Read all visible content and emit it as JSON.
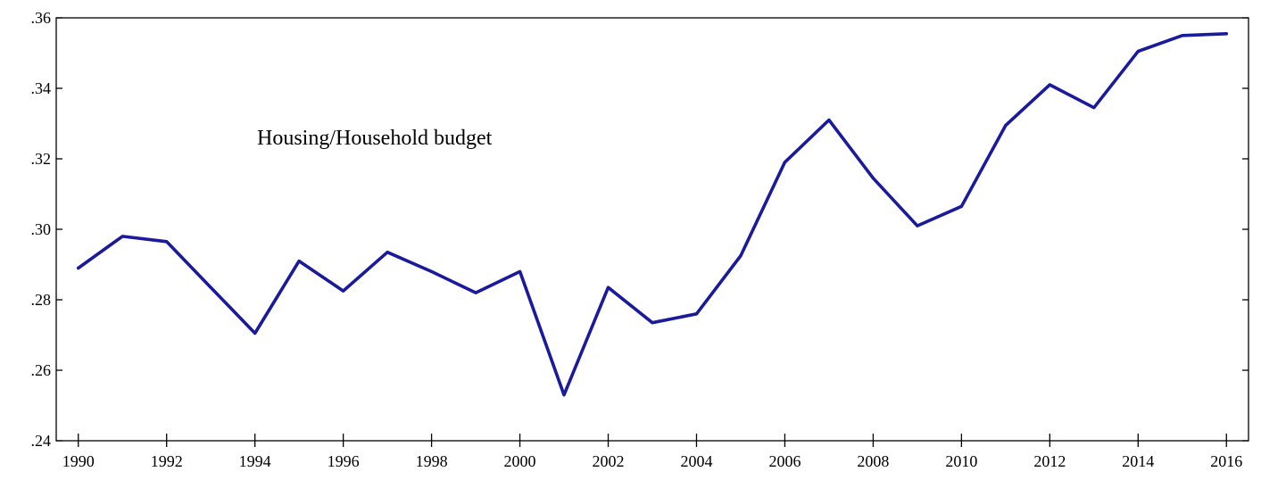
{
  "chart_data": {
    "type": "line",
    "title": "",
    "xlabel": "",
    "ylabel": "",
    "annotation": "Housing/Household budget",
    "x": [
      1990,
      1991,
      1992,
      1993,
      1994,
      1995,
      1996,
      1997,
      1998,
      1999,
      2000,
      2001,
      2002,
      2003,
      2004,
      2005,
      2006,
      2007,
      2008,
      2009,
      2010,
      2011,
      2012,
      2013,
      2014,
      2015,
      2016
    ],
    "series": [
      {
        "values": [
          0.289,
          0.298,
          0.2965,
          0.2835,
          0.2705,
          0.291,
          0.2825,
          0.2935,
          0.288,
          0.282,
          0.288,
          0.253,
          0.2835,
          0.2735,
          0.276,
          0.2925,
          0.319,
          0.331,
          0.3145,
          0.301,
          0.3065,
          0.3295,
          0.341,
          0.3345,
          0.3505,
          0.355,
          0.3555
        ]
      }
    ],
    "xlim": [
      1989.5,
      2016.5
    ],
    "ylim": [
      0.24,
      0.36
    ],
    "xticks": [
      1990,
      1992,
      1994,
      1996,
      1998,
      2000,
      2002,
      2004,
      2006,
      2008,
      2010,
      2012,
      2014,
      2016
    ],
    "xtick_labels": [
      "1990",
      "1992",
      "1994",
      "1996",
      "1998",
      "2000",
      "2002",
      "2004",
      "2006",
      "2008",
      "2010",
      "2012",
      "2014",
      "2016"
    ],
    "yticks": [
      0.24,
      0.26,
      0.28,
      0.3,
      0.32,
      0.34,
      0.36
    ],
    "ytick_labels": [
      ".24",
      ".26",
      ".28",
      ".30",
      ".32",
      ".34",
      ".36"
    ],
    "grid": false,
    "legend": "none",
    "line_color": "#1a1a9c"
  }
}
